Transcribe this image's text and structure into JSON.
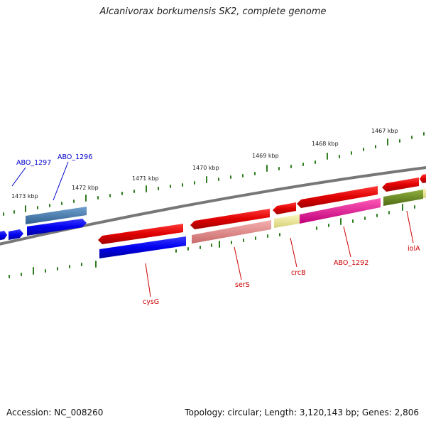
{
  "header": {
    "title": "Alcanivorax borkumensis SK2, complete genome"
  },
  "footer": {
    "accession": "Accession: NC_008260",
    "topology": "Topology: circular; Length: 3,120,143 bp; Genes: 2,806"
  },
  "kbp_ticks": [
    {
      "label": "1473 kbp"
    },
    {
      "label": "1472 kbp"
    },
    {
      "label": "1471 kbp"
    },
    {
      "label": "1470 kbp"
    },
    {
      "label": "1469 kbp"
    },
    {
      "label": "1468 kbp"
    },
    {
      "label": "1467 kbp"
    }
  ],
  "gene_labels": {
    "abo_1297": "ABO_1297",
    "abo_1296": "ABO_1296",
    "cysg": "cysG",
    "sers": "serS",
    "crcb": "crcB",
    "abo_1292": "ABO_1292",
    "iola": "iolA"
  },
  "colors": {
    "backbone": "#808080",
    "tick": "#2e7d1e",
    "forward_cds": "#e00000",
    "reverse_cds": "#0000ee",
    "steelblue": "#4a7fb5",
    "pink": "#ef8c8c",
    "yellow": "#f2ee9a",
    "magenta": "#ee1f9a",
    "olive": "#6b8e23",
    "blue_label": "#0000cc",
    "red_label": "#cc0000"
  }
}
